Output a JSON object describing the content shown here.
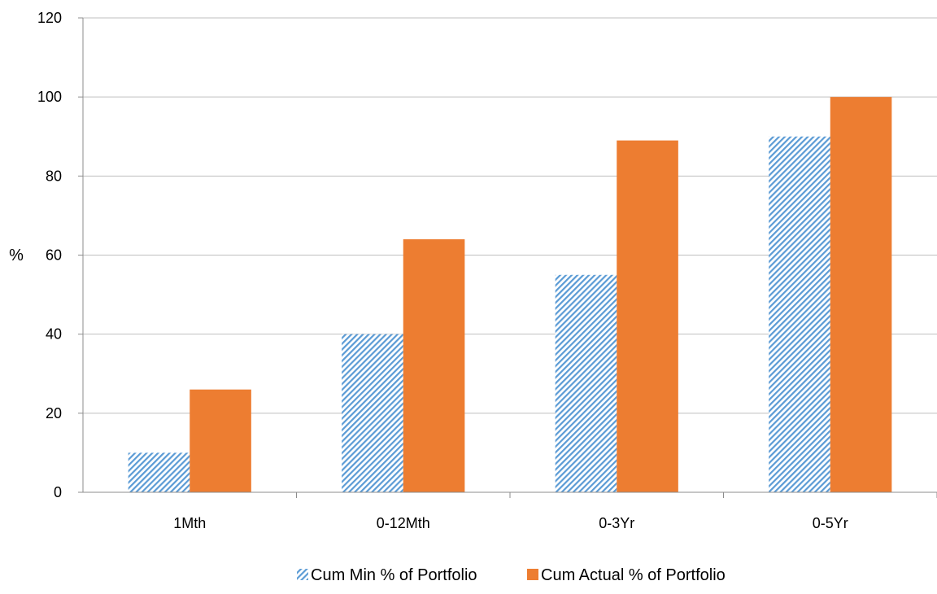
{
  "chart_data": {
    "type": "bar",
    "title": "",
    "xlabel": "",
    "ylabel": "%",
    "categories": [
      "1Mth",
      "0-12Mth",
      "0-3Yr",
      "0-5Yr"
    ],
    "series": [
      {
        "name": "Cum Min % of Portfolio",
        "values": [
          10,
          40,
          55,
          90
        ],
        "color": "#5b9bd5",
        "fill": "diagonal-hatch"
      },
      {
        "name": "Cum Actual % of Portfolio",
        "values": [
          26,
          64,
          89,
          100
        ],
        "color": "#ed7d31",
        "fill": "solid"
      }
    ],
    "ylim": [
      0,
      120
    ],
    "yticks": [
      0,
      20,
      40,
      60,
      80,
      100,
      120
    ],
    "grid": true,
    "legend": "bottom-center"
  }
}
